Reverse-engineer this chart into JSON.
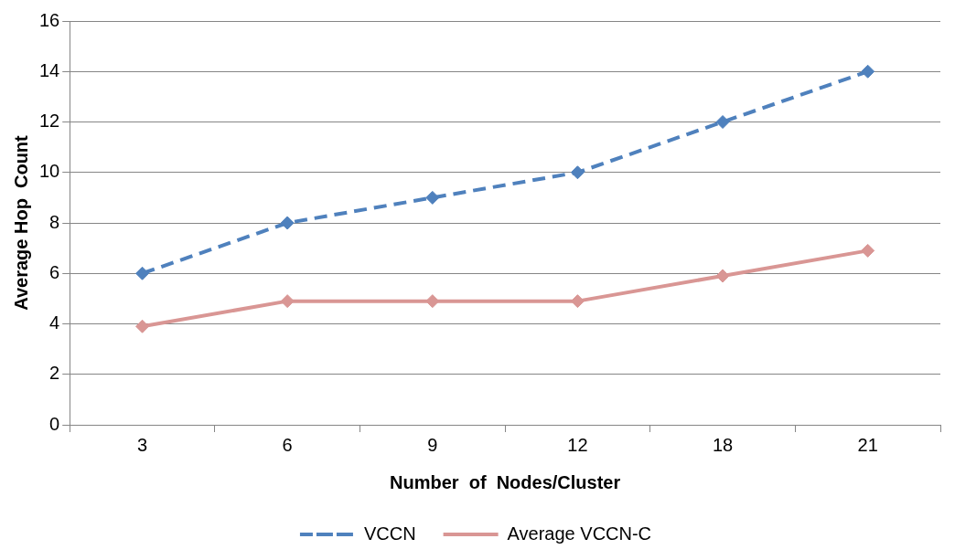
{
  "chart_data": {
    "type": "line",
    "xlabel": "Number  of  Nodes/Cluster",
    "ylabel": "Average Hop  Count",
    "categories": [
      "3",
      "6",
      "9",
      "12",
      "18",
      "21"
    ],
    "series": [
      {
        "name": "VCCN",
        "color": "#4f81bd",
        "line_style": "dashed",
        "values": [
          6,
          8,
          9,
          10,
          12,
          14
        ]
      },
      {
        "name": "Average VCCN-C",
        "color": "#d99694",
        "line_style": "solid",
        "values": [
          3.9,
          4.9,
          4.9,
          4.9,
          5.9,
          6.9
        ]
      }
    ],
    "ylim": [
      0,
      16
    ],
    "yticks": [
      0,
      2,
      4,
      6,
      8,
      10,
      12,
      14,
      16
    ],
    "grid": "y",
    "legend": "bottom",
    "marker": "diamond"
  }
}
